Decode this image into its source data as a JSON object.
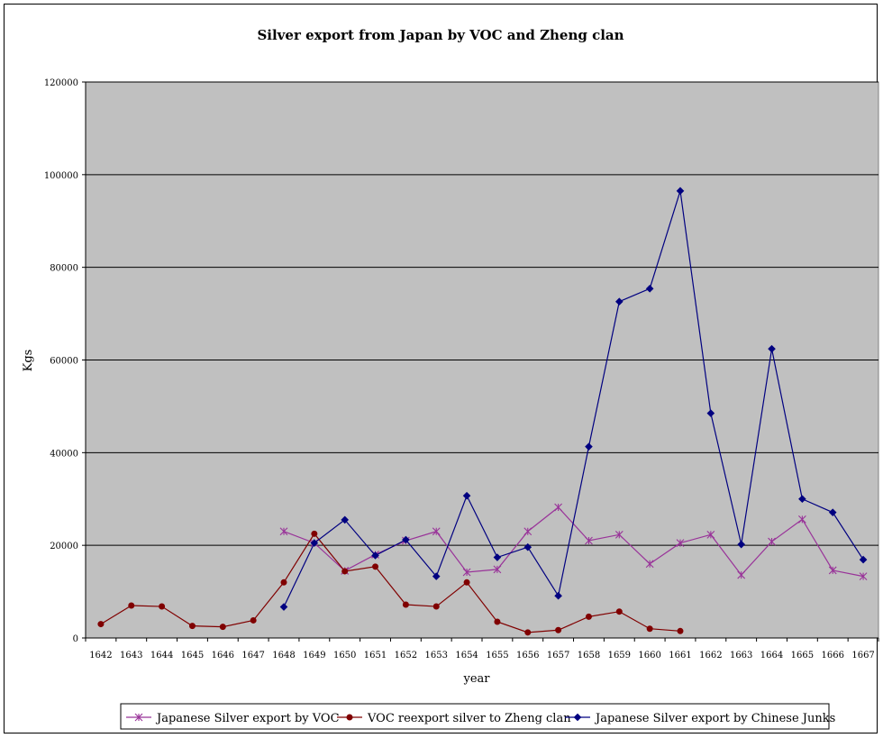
{
  "chart_data": {
    "type": "line",
    "title": "Silver export from Japan by VOC and Zheng clan",
    "xlabel": "year",
    "ylabel": "Kgs",
    "ylim": [
      0,
      120000
    ],
    "yticks": [
      0,
      20000,
      40000,
      60000,
      80000,
      100000,
      120000
    ],
    "ytick_labels": [
      "0",
      "20000",
      "40000",
      "60000",
      "80000",
      "100000",
      "120000"
    ],
    "categories": [
      "1642",
      "1643",
      "1644",
      "1645",
      "1646",
      "1647",
      "1648",
      "1649",
      "1650",
      "1651",
      "1652",
      "1653",
      "1654",
      "1655",
      "1656",
      "1657",
      "1658",
      "1659",
      "1660",
      "1661",
      "1662",
      "1663",
      "1664",
      "1665",
      "1666",
      "1667"
    ],
    "grid": "horizontal",
    "legend_position": "bottom",
    "plot_background": "#c0c0c0",
    "series": [
      {
        "name": "Japanese Silver export by VOC",
        "color": "#993399",
        "marker": "star",
        "values": [
          null,
          null,
          null,
          null,
          null,
          null,
          23000,
          20500,
          14500,
          18000,
          21000,
          23000,
          14200,
          14800,
          23000,
          28200,
          21000,
          22300,
          16000,
          20500,
          22300,
          13600,
          20800,
          25600,
          14600,
          13300
        ]
      },
      {
        "name": "VOC reexport silver to Zheng clan",
        "color": "#800000",
        "marker": "circle",
        "values": [
          3000,
          7000,
          6800,
          2600,
          2400,
          3800,
          12000,
          22500,
          14400,
          15400,
          7200,
          6800,
          12000,
          3500,
          1200,
          1700,
          4600,
          5700,
          2000,
          1500,
          null,
          null,
          null,
          null,
          null,
          null
        ]
      },
      {
        "name": "Japanese Silver export by Chinese Junks",
        "color": "#000080",
        "marker": "diamond",
        "values": [
          null,
          null,
          null,
          null,
          null,
          null,
          6700,
          20500,
          25500,
          17800,
          21200,
          13300,
          30700,
          17400,
          19600,
          9100,
          41300,
          72600,
          75400,
          96500,
          48500,
          20200,
          62400,
          30000,
          27100,
          16900
        ]
      }
    ]
  }
}
